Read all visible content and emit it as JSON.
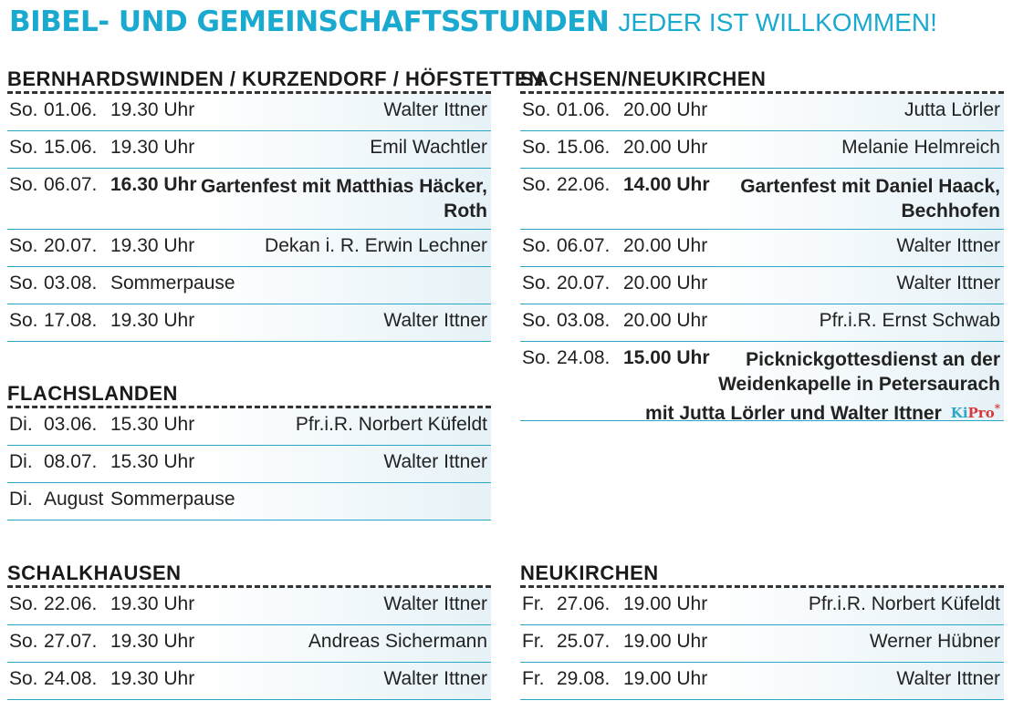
{
  "title": {
    "bold": "BIBEL- UND GEMEINSCHAFTSSTUNDEN",
    "light": "JEDER IST WILLKOMMEN!"
  },
  "colors": {
    "accent": "#1aa9cf",
    "row_line": "#2aa6c6",
    "kipro_red": "#d9383a"
  },
  "sections": {
    "bernhardswinden": {
      "title": "BERNHARDSWINDEN / KURZENDORF / HÖFSTETTEN",
      "rows": [
        {
          "day": "So.",
          "date": "01.06.",
          "time": "19.30 Uhr",
          "name": "Walter Ittner"
        },
        {
          "day": "So.",
          "date": "15.06.",
          "time": "19.30 Uhr",
          "name": "Emil Wachtler"
        },
        {
          "day": "So.",
          "date": "06.07.",
          "time": "16.30 Uhr",
          "name": "Gartenfest mit Matthias Häcker,",
          "name2": "Roth"
        },
        {
          "day": "So.",
          "date": "20.07.",
          "time": "19.30 Uhr",
          "name": "Dekan i. R. Erwin Lechner"
        },
        {
          "day": "So.",
          "date": "03.08.",
          "time": "Sommerpause",
          "name": ""
        },
        {
          "day": "So.",
          "date": "17.08.",
          "time": "19.30 Uhr",
          "name": "Walter Ittner"
        }
      ]
    },
    "flachslanden": {
      "title": "FLACHSLANDEN",
      "rows": [
        {
          "day": "Di.",
          "date": "03.06.",
          "time": "15.30 Uhr",
          "name": "Pfr.i.R. Norbert Küfeldt"
        },
        {
          "day": "Di.",
          "date": "08.07.",
          "time": "15.30 Uhr",
          "name": "Walter Ittner"
        },
        {
          "day": "Di.",
          "date": "August",
          "time": "Sommerpause",
          "name": ""
        }
      ]
    },
    "schalkhausen": {
      "title": "SCHALKHAUSEN",
      "rows": [
        {
          "day": "So.",
          "date": "22.06.",
          "time": "19.30 Uhr",
          "name": "Walter Ittner"
        },
        {
          "day": "So.",
          "date": "27.07.",
          "time": "19.30 Uhr",
          "name": "Andreas Sichermann"
        },
        {
          "day": "So.",
          "date": "24.08.",
          "time": "19.30 Uhr",
          "name": "Walter Ittner"
        }
      ]
    },
    "sachsen": {
      "title": "SACHSEN/NEUKIRCHEN",
      "rows": [
        {
          "day": "So.",
          "date": "01.06.",
          "time": "20.00 Uhr",
          "name": "Jutta Lörler"
        },
        {
          "day": "So.",
          "date": "15.06.",
          "time": "20.00 Uhr",
          "name": "Melanie Helmreich"
        },
        {
          "day": "So.",
          "date": "22.06.",
          "time": "14.00 Uhr",
          "name": "Gartenfest mit Daniel Haack,",
          "name2": "Bechhofen"
        },
        {
          "day": "So.",
          "date": "06.07.",
          "time": "20.00 Uhr",
          "name": "Walter Ittner"
        },
        {
          "day": "So.",
          "date": "20.07.",
          "time": "20.00 Uhr",
          "name": "Walter Ittner"
        },
        {
          "day": "So.",
          "date": "03.08.",
          "time": "20.00 Uhr",
          "name": "Pfr.i.R. Ernst Schwab"
        },
        {
          "day": "So.",
          "date": "24.08.",
          "time": "15.00 Uhr",
          "name": "Picknickgottesdienst an der",
          "name2": "Weidenkapelle in Petersaurach",
          "name3": "mit Jutta Lörler und Walter Ittner"
        }
      ],
      "kipro": {
        "k": "Ki",
        "p": "Pro",
        "star": "*"
      }
    },
    "neukirchen": {
      "title": "NEUKIRCHEN",
      "rows": [
        {
          "day": "Fr.",
          "date": "27.06.",
          "time": "19.00 Uhr",
          "name": "Pfr.i.R. Norbert Küfeldt"
        },
        {
          "day": "Fr.",
          "date": "25.07.",
          "time": "19.00 Uhr",
          "name": "Werner Hübner"
        },
        {
          "day": "Fr.",
          "date": "29.08.",
          "time": "19.00 Uhr",
          "name": "Walter Ittner"
        }
      ]
    }
  }
}
